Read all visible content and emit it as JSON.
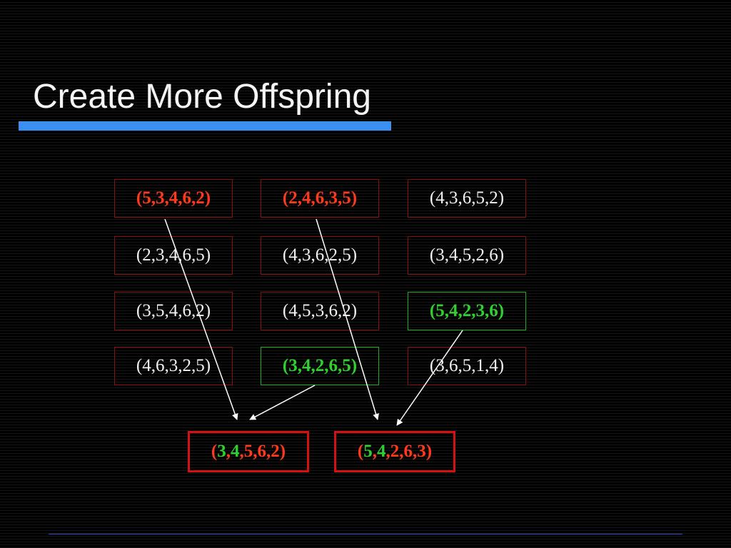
{
  "slide": {
    "title": "Create More Offspring",
    "population": [
      [
        "(5,3,4,6,2)",
        "(2,4,6,3,5)",
        "(4,3,6,5,2)"
      ],
      [
        "(2,3,4,6,5)",
        "(4,3,6,2,5)",
        "(3,4,5,2,6)"
      ],
      [
        "(3,5,4,6,2)",
        "(4,5,3,6,2)",
        "(5,4,2,3,6)"
      ],
      [
        "(4,6,3,2,5)",
        "(3,4,2,6,5)",
        "(3,6,5,1,4)"
      ]
    ],
    "offspring": [
      {
        "parts": [
          {
            "text": "(",
            "color": "red"
          },
          {
            "text": "3",
            "color": "green"
          },
          {
            "text": ",",
            "color": "red"
          },
          {
            "text": "4",
            "color": "green"
          },
          {
            "text": ",5,6,2)",
            "color": "red"
          }
        ]
      },
      {
        "parts": [
          {
            "text": "(",
            "color": "red"
          },
          {
            "text": "5",
            "color": "green"
          },
          {
            "text": ",",
            "color": "red"
          },
          {
            "text": "4",
            "color": "green"
          },
          {
            "text": ",2,6,3)",
            "color": "red"
          }
        ]
      }
    ]
  },
  "colors": {
    "title_bar": "#3a8ff0",
    "selected_red": "#ff3a1c",
    "selected_green": "#2fd02f",
    "cell_border": "#8a1010",
    "offspring_border": "#d51010",
    "arrow": "#ffffff"
  }
}
